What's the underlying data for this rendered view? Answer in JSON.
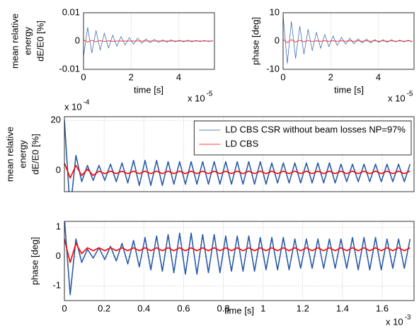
{
  "chart_data": [
    {
      "type": "line",
      "grid": true,
      "ylabel": [
        "mean relative",
        "energy",
        "dE/E0 [%]"
      ],
      "xlabel": "time [s]",
      "x_multiplier": {
        "base": "x 10",
        "exponent": "-5"
      },
      "xlim": [
        0,
        5.5
      ],
      "xticks": [
        0,
        2,
        4
      ],
      "ylim": [
        -0.01,
        0.01
      ],
      "yticks": [
        -0.01,
        0,
        0.01
      ],
      "x": [
        0,
        0.175,
        0.35,
        0.525,
        0.7,
        0.875,
        1.05,
        1.225,
        1.4,
        1.575,
        1.75,
        1.925,
        2.1,
        2.275,
        2.45,
        2.625,
        2.8,
        2.975,
        3.15,
        3.325,
        3.5,
        3.675,
        3.85,
        4.025,
        4.2,
        4.375,
        4.55,
        4.725,
        4.9,
        5.075,
        5.25,
        5.425
      ],
      "series": [
        {
          "color": "#2a5ca8",
          "values": [
            -0.0055,
            0.0048,
            -0.0042,
            0.0037,
            -0.0032,
            0.0028,
            -0.0025,
            0.0021,
            -0.0019,
            0.0016,
            -0.0014,
            0.0012,
            -0.0011,
            0.001,
            -0.0008,
            0.0007,
            -0.0006,
            0.0006,
            -0.0005,
            0.0004,
            -0.0004,
            0.0004,
            -0.0003,
            0.0003,
            -0.0003,
            0.0003,
            -0.0003,
            0.0002,
            -0.0002,
            0.0002,
            -0.0002,
            0.0002
          ]
        },
        {
          "color": "#ff0000",
          "values": [
            0.0004,
            -0.0004,
            0.0003,
            -0.0003,
            0.0002,
            -0.0002,
            0.0001,
            -0.0001,
            0,
            0,
            0,
            0,
            0,
            0,
            0,
            0,
            0,
            0,
            0,
            0,
            0,
            0,
            0,
            0,
            0,
            0,
            0,
            0,
            0,
            0,
            0,
            0
          ]
        }
      ]
    },
    {
      "type": "line",
      "grid": true,
      "ylabel": [
        "phase [deg]"
      ],
      "xlabel": "time [s]",
      "x_multiplier": {
        "base": "x 10",
        "exponent": "-5"
      },
      "xlim": [
        0,
        5.5
      ],
      "xticks": [
        0,
        2,
        4
      ],
      "ylim": [
        -10,
        10
      ],
      "yticks": [
        -10,
        0,
        10
      ],
      "x": [
        0,
        0.175,
        0.35,
        0.525,
        0.7,
        0.875,
        1.05,
        1.225,
        1.4,
        1.575,
        1.75,
        1.925,
        2.1,
        2.275,
        2.45,
        2.625,
        2.8,
        2.975,
        3.15,
        3.325,
        3.5,
        3.675,
        3.85,
        4.025,
        4.2,
        4.375,
        4.55,
        4.725,
        4.9,
        5.075,
        5.25,
        5.425
      ],
      "series": [
        {
          "color": "#2a5ca8",
          "values": [
            9,
            -7.9,
            6.9,
            -6.1,
            5.2,
            -4.6,
            4.1,
            -3.4,
            3.1,
            -2.6,
            2.3,
            -2,
            1.8,
            -1.6,
            1.3,
            -1.1,
            1,
            -1,
            0.8,
            -0.7,
            0.7,
            -0.7,
            0.5,
            -0.5,
            0.5,
            -0.5,
            0.5,
            -0.3,
            0.3,
            -0.3,
            0.3,
            -0.3
          ]
        },
        {
          "color": "#ff0000",
          "values": [
            0.6,
            -0.6,
            0.5,
            -0.4,
            0.3,
            -0.3,
            0.2,
            -0.2,
            0.1,
            -0.1,
            0.1,
            -0.1,
            0.1,
            -0.1,
            0.1,
            -0.1,
            0.1,
            -0.1,
            0.1,
            -0.1,
            0.1,
            -0.1,
            0.1,
            -0.1,
            0.1,
            -0.1,
            0.1,
            -0.1,
            0.1,
            -0.1,
            0.1,
            -0.1
          ]
        }
      ]
    },
    {
      "type": "line",
      "grid": true,
      "x_tick_labels": false,
      "ylabel": [
        "mean relative",
        "energy",
        "dE/E0 [%]"
      ],
      "y_multiplier": {
        "base": "x 10",
        "exponent": "-4"
      },
      "xlim": [
        0,
        1.76
      ],
      "xticks": [
        0,
        0.2,
        0.4,
        0.6,
        0.8,
        1,
        1.2,
        1.4,
        1.6
      ],
      "ylim": [
        -8.5,
        21.5
      ],
      "yticks": [
        0,
        20
      ],
      "legend": "top-right",
      "x": [
        0,
        0.029,
        0.058,
        0.087,
        0.116,
        0.145,
        0.174,
        0.203,
        0.232,
        0.261,
        0.29,
        0.319,
        0.348,
        0.377,
        0.406,
        0.435,
        0.464,
        0.493,
        0.522,
        0.551,
        0.58,
        0.609,
        0.638,
        0.667,
        0.696,
        0.725,
        0.754,
        0.783,
        0.812,
        0.841,
        0.87,
        0.899,
        0.928,
        0.957,
        0.986,
        1.015,
        1.044,
        1.073,
        1.102,
        1.131,
        1.16,
        1.189,
        1.218,
        1.247,
        1.276,
        1.305,
        1.334,
        1.363,
        1.392,
        1.421,
        1.45,
        1.479,
        1.508,
        1.537,
        1.566,
        1.595,
        1.624,
        1.653,
        1.682,
        1.711,
        1.74
      ],
      "series": [
        {
          "name": "LD CBS CSR without beam losses NP=97%",
          "color": "#2a5ca8",
          "values": [
            20,
            -16,
            6,
            -4.5,
            2,
            -4,
            2,
            -4,
            2.5,
            -4.5,
            3,
            -5,
            4,
            -6,
            4,
            -6,
            4,
            -6,
            3.5,
            -5.5,
            3.5,
            -5.5,
            3.5,
            -5.5,
            3.5,
            -5.5,
            3.5,
            -5.5,
            3.5,
            -5.5,
            3.5,
            -5.5,
            3.5,
            -5.5,
            3.5,
            -5.5,
            3,
            -5,
            3,
            -5,
            3,
            -5,
            3,
            -5,
            3,
            -5,
            3,
            -5,
            2.5,
            -4.5,
            2.5,
            -4.5,
            2.5,
            -4.5,
            2.5,
            -4.5,
            2.5,
            -4.5,
            2.5,
            -4.5,
            2.5
          ]
        },
        {
          "name": "LD CBS",
          "color": "#ff0000",
          "values": [
            3,
            -3,
            2,
            -2,
            0.5,
            -2,
            -0.3,
            -1.3,
            -0.3,
            -1.3,
            -0.3,
            -1.3,
            -0.3,
            -1.3,
            -0.3,
            -1.3,
            -0.3,
            -1.3,
            -0.3,
            -1.3,
            -0.3,
            -1.3,
            -0.3,
            -1.3,
            -0.3,
            -1.3,
            -0.3,
            -1.3,
            -0.3,
            -1.3,
            -0.3,
            -1.3,
            -0.3,
            -1.3,
            -0.3,
            -1.3,
            -0.3,
            -1.3,
            -0.3,
            -1.3,
            -0.3,
            -1.3,
            -0.3,
            -1.3,
            -0.3,
            -1.3,
            -0.3,
            -1.3,
            -0.3,
            -1.3,
            -0.3,
            -1.3,
            -0.3,
            -1.3,
            -0.3,
            -1.3,
            -0.3,
            -1.3,
            -0.3,
            -1.3,
            -0.3
          ]
        }
      ]
    },
    {
      "type": "line",
      "grid": true,
      "ylabel": [
        "phase [deg]"
      ],
      "xlabel": "time [s]",
      "x_multiplier": {
        "base": "x 10",
        "exponent": "-3"
      },
      "xlim": [
        0,
        1.76
      ],
      "xticks": [
        0,
        0.2,
        0.4,
        0.6,
        0.8,
        1,
        1.2,
        1.4,
        1.6
      ],
      "ylim": [
        -1.5,
        1.2
      ],
      "yticks": [
        -1,
        0,
        1
      ],
      "x": [
        0,
        0.029,
        0.058,
        0.087,
        0.116,
        0.145,
        0.174,
        0.203,
        0.232,
        0.261,
        0.29,
        0.319,
        0.348,
        0.377,
        0.406,
        0.435,
        0.464,
        0.493,
        0.522,
        0.551,
        0.58,
        0.609,
        0.638,
        0.667,
        0.696,
        0.725,
        0.754,
        0.783,
        0.812,
        0.841,
        0.87,
        0.899,
        0.928,
        0.957,
        0.986,
        1.015,
        1.044,
        1.073,
        1.102,
        1.131,
        1.16,
        1.189,
        1.218,
        1.247,
        1.276,
        1.305,
        1.334,
        1.363,
        1.392,
        1.421,
        1.45,
        1.479,
        1.508,
        1.537,
        1.566,
        1.595,
        1.624,
        1.653,
        1.682,
        1.711,
        1.74
      ],
      "series": [
        {
          "color": "#2a5ca8",
          "values": [
            1.3,
            -1.3,
            0.6,
            -0.2,
            0.25,
            -0.05,
            0.3,
            -0.1,
            0.35,
            -0.15,
            0.45,
            -0.25,
            0.55,
            -0.35,
            0.65,
            -0.45,
            0.7,
            -0.5,
            0.75,
            -0.55,
            0.8,
            -0.6,
            0.8,
            -0.6,
            0.75,
            -0.55,
            0.75,
            -0.55,
            0.7,
            -0.5,
            0.7,
            -0.5,
            0.7,
            -0.5,
            0.65,
            -0.45,
            0.65,
            -0.45,
            0.65,
            -0.45,
            0.6,
            -0.4,
            0.6,
            -0.4,
            0.6,
            -0.4,
            0.6,
            -0.4,
            0.6,
            -0.4,
            0.65,
            -0.45,
            0.65,
            -0.45,
            0.65,
            -0.45,
            0.6,
            -0.4,
            0.6,
            -0.4,
            0.6
          ]
        },
        {
          "color": "#ff0000",
          "values": [
            0.6,
            -0.2,
            0.45,
            0.1,
            0.3,
            0.2,
            0.3,
            0.2,
            0.3,
            0.2,
            0.3,
            0.2,
            0.3,
            0.2,
            0.3,
            0.2,
            0.3,
            0.2,
            0.3,
            0.2,
            0.3,
            0.2,
            0.3,
            0.2,
            0.3,
            0.2,
            0.3,
            0.2,
            0.3,
            0.2,
            0.3,
            0.2,
            0.3,
            0.2,
            0.3,
            0.2,
            0.3,
            0.2,
            0.3,
            0.2,
            0.3,
            0.2,
            0.3,
            0.2,
            0.3,
            0.2,
            0.3,
            0.2,
            0.3,
            0.2,
            0.3,
            0.2,
            0.3,
            0.2,
            0.3,
            0.2,
            0.3,
            0.2,
            0.3,
            0.2,
            0.3
          ]
        }
      ]
    }
  ]
}
